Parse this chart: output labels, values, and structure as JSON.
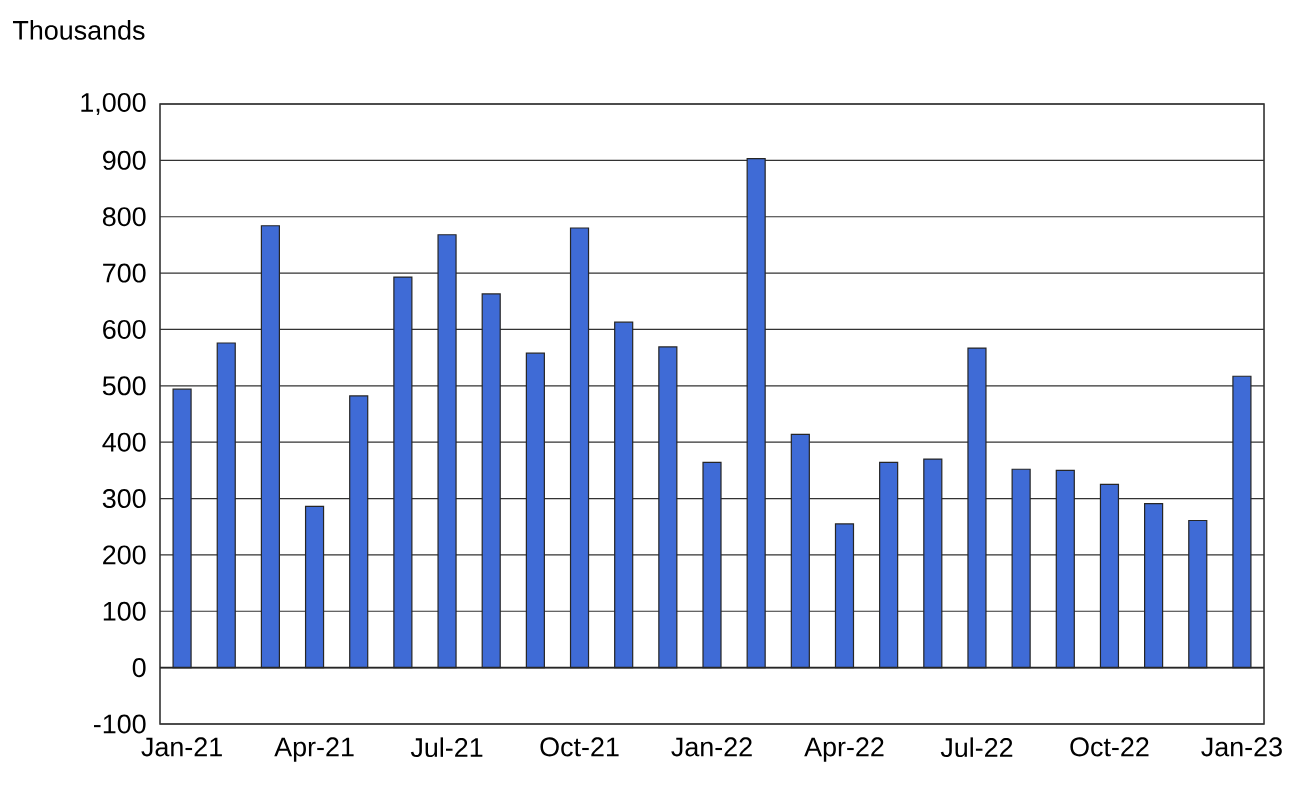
{
  "chart_data": {
    "type": "bar",
    "ylabel": "Thousands",
    "categories": [
      "Jan-21",
      null,
      null,
      "Apr-21",
      null,
      null,
      "Jul-21",
      null,
      null,
      "Oct-21",
      null,
      null,
      "Jan-22",
      null,
      null,
      "Apr-22",
      null,
      null,
      "Jul-22",
      null,
      null,
      "Oct-22",
      null,
      null,
      "Jan-23"
    ],
    "values": [
      494,
      576,
      784,
      286,
      482,
      693,
      768,
      663,
      558,
      780,
      613,
      569,
      364,
      903,
      414,
      255,
      364,
      370,
      567,
      352,
      350,
      325,
      291,
      261,
      517
    ],
    "color": "#3f6bd6",
    "ylim": [
      -100,
      1000
    ],
    "yticks": [
      -100,
      0,
      100,
      200,
      300,
      400,
      500,
      600,
      700,
      800,
      900,
      {
        "value": 1000,
        "label": "1,000"
      }
    ],
    "grid": "y"
  }
}
